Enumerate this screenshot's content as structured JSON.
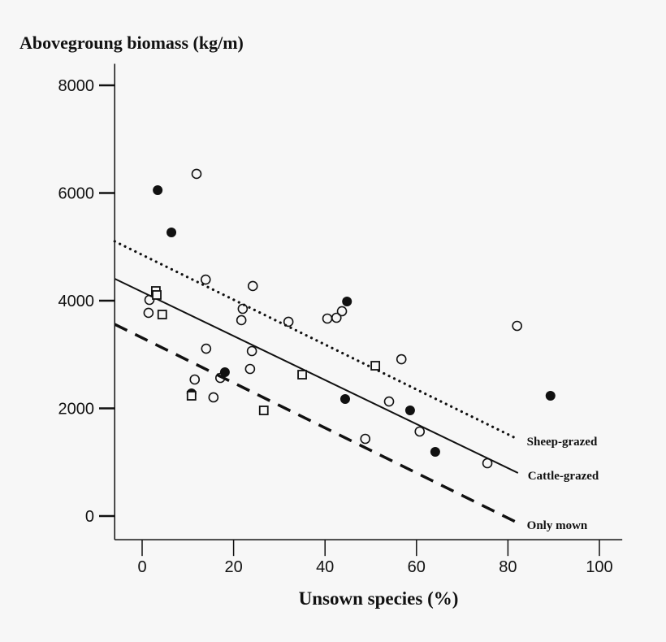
{
  "chart_data": {
    "type": "scatter",
    "title": "Abovegroung biomass (kg/m)",
    "xlabel": "Unsown species (%)",
    "ylabel": "",
    "xlim": [
      -6,
      105
    ],
    "ylim": [
      -440,
      8400
    ],
    "xticks": [
      0,
      20,
      40,
      60,
      80,
      100
    ],
    "yticks": [
      0,
      2000,
      4000,
      6000,
      8000
    ],
    "grid": false,
    "series": [
      {
        "marker": "open-circle",
        "points": [
          [
            1.6,
            4015
          ],
          [
            1.4,
            3774
          ],
          [
            11.9,
            6355
          ],
          [
            13.9,
            4392
          ],
          [
            22.0,
            3849
          ],
          [
            21.7,
            3638
          ],
          [
            24.2,
            4272
          ],
          [
            32.0,
            3608
          ],
          [
            40.5,
            3668
          ],
          [
            42.5,
            3683
          ],
          [
            43.7,
            3804
          ],
          [
            14.0,
            3109
          ],
          [
            11.5,
            2536
          ],
          [
            17.1,
            2566
          ],
          [
            15.6,
            2204
          ],
          [
            24.0,
            3064
          ],
          [
            23.6,
            2732
          ],
          [
            56.7,
            2913
          ],
          [
            54.0,
            2128
          ],
          [
            48.8,
            1434
          ],
          [
            60.7,
            1570
          ],
          [
            75.5,
            981
          ],
          [
            82.0,
            3532
          ]
        ]
      },
      {
        "marker": "filled-circle",
        "points": [
          [
            3.4,
            6053
          ],
          [
            6.4,
            5268
          ],
          [
            44.8,
            3985
          ],
          [
            18.1,
            2672
          ],
          [
            10.8,
            2279
          ],
          [
            44.4,
            2174
          ],
          [
            58.6,
            1962
          ],
          [
            64.1,
            1192
          ],
          [
            89.3,
            2234
          ]
        ]
      },
      {
        "marker": "open-square",
        "points": [
          [
            3.0,
            4181
          ],
          [
            3.2,
            4106
          ],
          [
            4.4,
            3743
          ],
          [
            10.8,
            2234
          ],
          [
            26.6,
            1962
          ],
          [
            35.0,
            2626
          ],
          [
            51.0,
            2792
          ]
        ]
      }
    ],
    "lines": [
      {
        "name": "Sheep-grazed",
        "style": "dotted",
        "x": [
          -6,
          82
        ],
        "y": [
          5102,
          1434
        ]
      },
      {
        "name": "Cattle-grazed",
        "style": "solid",
        "x": [
          -6,
          82.2
        ],
        "y": [
          4408,
          800
        ]
      },
      {
        "name": "Only mown",
        "style": "dashed",
        "x": [
          -6,
          82
        ],
        "y": [
          3562,
          -121
        ]
      }
    ]
  }
}
